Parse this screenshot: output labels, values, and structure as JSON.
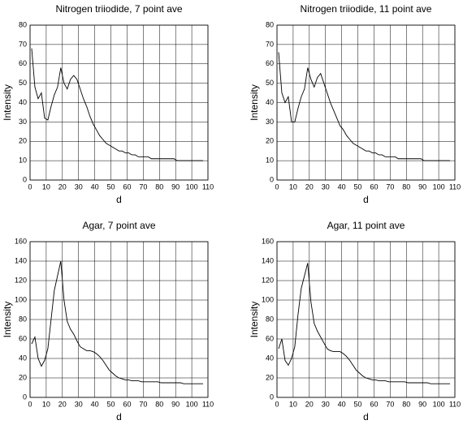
{
  "chart_data": [
    {
      "type": "line",
      "title": "Nitrogen triiodide, 7 point ave",
      "x_label": "d",
      "y_label": "Intensity",
      "x": [
        1,
        3,
        5,
        7,
        9,
        11,
        13,
        15,
        17,
        19,
        21,
        23,
        25,
        27,
        29,
        31,
        33,
        35,
        37,
        39,
        41,
        43,
        45,
        47,
        49,
        51,
        53,
        55,
        57,
        59,
        61,
        63,
        65,
        67,
        69,
        71,
        73,
        75,
        77,
        79,
        81,
        83,
        85,
        87,
        89,
        91,
        93,
        95,
        97,
        99,
        101,
        103,
        105,
        107
      ],
      "series": [
        {
          "name": "Nitrogen triiodide, 7 point ave",
          "color": "#000000",
          "values": [
            68,
            48,
            42,
            45,
            32,
            31,
            38,
            44,
            48,
            58,
            50,
            47,
            52,
            54,
            52,
            47,
            42,
            38,
            33,
            29,
            26,
            23,
            21,
            19,
            18,
            17,
            16,
            15,
            15,
            14,
            14,
            13,
            13,
            12,
            12,
            12,
            12,
            11,
            11,
            11,
            11,
            11,
            11,
            11,
            11,
            10,
            10,
            10,
            10,
            10,
            10,
            10,
            10,
            10
          ]
        }
      ],
      "xlim": [
        0,
        110
      ],
      "xticks": [
        0,
        10,
        20,
        30,
        40,
        50,
        60,
        70,
        80,
        90,
        100,
        110
      ],
      "ylim": [
        0,
        80
      ],
      "yticks": [
        0,
        10,
        20,
        30,
        40,
        50,
        60,
        70,
        80
      ],
      "grid": true
    },
    {
      "type": "line",
      "title": "Nitrogen triiodide, 11 point ave",
      "x_label": "d",
      "y_label": "Intensity",
      "x": [
        1,
        3,
        5,
        7,
        9,
        11,
        13,
        15,
        17,
        19,
        21,
        23,
        25,
        27,
        29,
        31,
        33,
        35,
        37,
        39,
        41,
        43,
        45,
        47,
        49,
        51,
        53,
        55,
        57,
        59,
        61,
        63,
        65,
        67,
        69,
        71,
        73,
        75,
        77,
        79,
        81,
        83,
        85,
        87,
        89,
        91,
        93,
        95,
        97,
        99,
        101,
        103,
        105,
        107
      ],
      "series": [
        {
          "name": "Nitrogen triiodide, 11 point ave",
          "color": "#000000",
          "values": [
            66,
            45,
            40,
            43,
            30,
            30,
            37,
            43,
            47,
            58,
            52,
            48,
            53,
            55,
            50,
            45,
            40,
            36,
            32,
            28,
            26,
            23,
            21,
            19,
            18,
            17,
            16,
            15,
            15,
            14,
            14,
            13,
            13,
            12,
            12,
            12,
            12,
            11,
            11,
            11,
            11,
            11,
            11,
            11,
            11,
            10,
            10,
            10,
            10,
            10,
            10,
            10,
            10,
            10
          ]
        }
      ],
      "xlim": [
        0,
        110
      ],
      "xticks": [
        0,
        10,
        20,
        30,
        40,
        50,
        60,
        70,
        80,
        90,
        100,
        110
      ],
      "ylim": [
        0,
        80
      ],
      "yticks": [
        0,
        10,
        20,
        30,
        40,
        50,
        60,
        70,
        80
      ],
      "grid": true
    },
    {
      "type": "line",
      "title": "Agar, 7 point ave",
      "x_label": "d",
      "y_label": "Intensity",
      "x": [
        1,
        3,
        5,
        7,
        9,
        11,
        13,
        15,
        17,
        19,
        21,
        23,
        25,
        27,
        29,
        31,
        33,
        35,
        37,
        39,
        41,
        43,
        45,
        47,
        49,
        51,
        53,
        55,
        57,
        59,
        61,
        63,
        65,
        67,
        69,
        71,
        73,
        75,
        77,
        79,
        81,
        83,
        85,
        87,
        89,
        91,
        93,
        95,
        97,
        99,
        101,
        103,
        105,
        107
      ],
      "series": [
        {
          "name": "Agar, 7 point ave",
          "color": "#000000",
          "values": [
            55,
            62,
            40,
            32,
            38,
            50,
            80,
            110,
            125,
            140,
            100,
            78,
            70,
            65,
            58,
            52,
            50,
            48,
            48,
            47,
            45,
            42,
            38,
            33,
            28,
            25,
            22,
            20,
            19,
            18,
            18,
            17,
            17,
            17,
            16,
            16,
            16,
            16,
            16,
            16,
            15,
            15,
            15,
            15,
            15,
            15,
            15,
            14,
            14,
            14,
            14,
            14,
            14,
            14
          ]
        }
      ],
      "xlim": [
        0,
        110
      ],
      "xticks": [
        0,
        10,
        20,
        30,
        40,
        50,
        60,
        70,
        80,
        90,
        100,
        110
      ],
      "ylim": [
        0,
        160
      ],
      "yticks": [
        0,
        20,
        40,
        60,
        80,
        100,
        120,
        140,
        160
      ],
      "grid": true
    },
    {
      "type": "line",
      "title": "Agar, 11 point ave",
      "x_label": "d",
      "y_label": "Intensity",
      "x": [
        1,
        3,
        5,
        7,
        9,
        11,
        13,
        15,
        17,
        19,
        21,
        23,
        25,
        27,
        29,
        31,
        33,
        35,
        37,
        39,
        41,
        43,
        45,
        47,
        49,
        51,
        53,
        55,
        57,
        59,
        61,
        63,
        65,
        67,
        69,
        71,
        73,
        75,
        77,
        79,
        81,
        83,
        85,
        87,
        89,
        91,
        93,
        95,
        97,
        99,
        101,
        103,
        105,
        107
      ],
      "series": [
        {
          "name": "Agar, 11 point ave",
          "color": "#000000",
          "values": [
            50,
            60,
            38,
            33,
            40,
            52,
            85,
            112,
            125,
            138,
            98,
            76,
            68,
            62,
            56,
            50,
            48,
            47,
            47,
            47,
            45,
            42,
            38,
            33,
            28,
            25,
            22,
            20,
            19,
            18,
            18,
            17,
            17,
            17,
            16,
            16,
            16,
            16,
            16,
            16,
            15,
            15,
            15,
            15,
            15,
            15,
            15,
            14,
            14,
            14,
            14,
            14,
            14,
            14
          ]
        }
      ],
      "xlim": [
        0,
        110
      ],
      "xticks": [
        0,
        10,
        20,
        30,
        40,
        50,
        60,
        70,
        80,
        90,
        100,
        110
      ],
      "ylim": [
        0,
        160
      ],
      "yticks": [
        0,
        20,
        40,
        60,
        80,
        100,
        120,
        140,
        160
      ],
      "grid": true
    }
  ]
}
